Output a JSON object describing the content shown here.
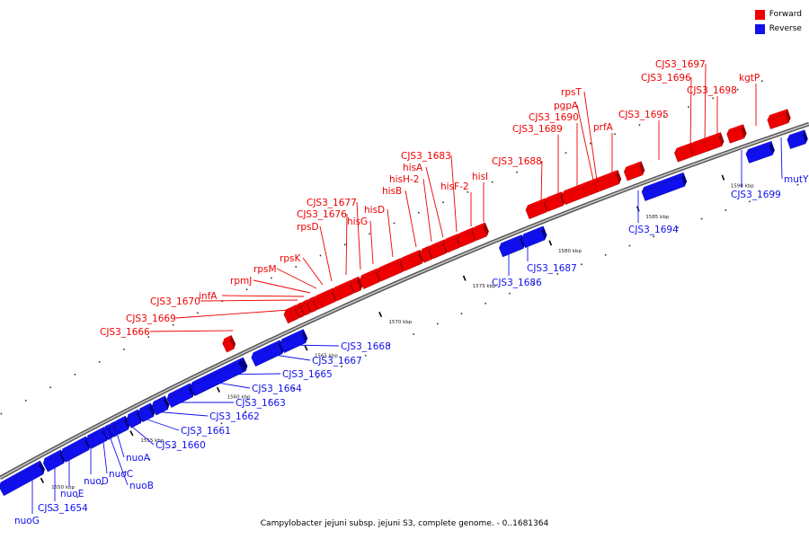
{
  "colors": {
    "forward": "#ee0000",
    "forward_dark": "#a00000",
    "reverse": "#1010ee",
    "reverse_dark": "#00008a"
  },
  "legend": [
    {
      "label": "Forward",
      "color": "#ee0000"
    },
    {
      "label": "Reverse",
      "color": "#1010ee"
    }
  ],
  "caption": "Campylobacter jejuni subsp. jejuni S3, complete genome. - 0..1681364",
  "ticks": [
    {
      "label": "1550 kbp"
    },
    {
      "label": "1555 kbp"
    },
    {
      "label": "1560 kbp"
    },
    {
      "label": "1565 kbp"
    },
    {
      "label": "1570 kbp"
    },
    {
      "label": "1575 kbp"
    },
    {
      "label": "1580 kbp"
    },
    {
      "label": "1585 kbp"
    },
    {
      "label": "1590 kbp"
    }
  ],
  "genes": [
    {
      "name": "nuoG",
      "strand": "reverse"
    },
    {
      "name": "CJS3_1654",
      "strand": "reverse"
    },
    {
      "name": "nuoE",
      "strand": "reverse"
    },
    {
      "name": "nuoD",
      "strand": "reverse"
    },
    {
      "name": "nuoC",
      "strand": "reverse"
    },
    {
      "name": "nuoB",
      "strand": "reverse"
    },
    {
      "name": "nuoA",
      "strand": "reverse"
    },
    {
      "name": "CJS3_1660",
      "strand": "reverse"
    },
    {
      "name": "CJS3_1661",
      "strand": "reverse"
    },
    {
      "name": "CJS3_1662",
      "strand": "reverse"
    },
    {
      "name": "CJS3_1663",
      "strand": "reverse"
    },
    {
      "name": "CJS3_1664",
      "strand": "reverse"
    },
    {
      "name": "CJS3_1665",
      "strand": "reverse"
    },
    {
      "name": "CJS3_1667",
      "strand": "reverse"
    },
    {
      "name": "CJS3_1668",
      "strand": "reverse"
    },
    {
      "name": "CJS3_1666",
      "strand": "forward"
    },
    {
      "name": "CJS3_1669",
      "strand": "forward"
    },
    {
      "name": "CJS3_1670",
      "strand": "forward"
    },
    {
      "name": "infA",
      "strand": "forward"
    },
    {
      "name": "rpmJ",
      "strand": "forward"
    },
    {
      "name": "rpsM",
      "strand": "forward"
    },
    {
      "name": "rpsK",
      "strand": "forward"
    },
    {
      "name": "rpsD",
      "strand": "forward"
    },
    {
      "name": "CJS3_1676",
      "strand": "forward"
    },
    {
      "name": "CJS3_1677",
      "strand": "forward"
    },
    {
      "name": "hisG",
      "strand": "forward"
    },
    {
      "name": "hisD",
      "strand": "forward"
    },
    {
      "name": "hisB",
      "strand": "forward"
    },
    {
      "name": "hisH-2",
      "strand": "forward"
    },
    {
      "name": "hisA",
      "strand": "forward"
    },
    {
      "name": "CJS3_1683",
      "strand": "forward"
    },
    {
      "name": "hisF-2",
      "strand": "forward"
    },
    {
      "name": "hisI",
      "strand": "forward"
    },
    {
      "name": "CJS3_1686",
      "strand": "reverse"
    },
    {
      "name": "CJS3_1687",
      "strand": "reverse"
    },
    {
      "name": "CJS3_1688",
      "strand": "forward"
    },
    {
      "name": "CJS3_1689",
      "strand": "forward"
    },
    {
      "name": "CJS3_1690",
      "strand": "forward"
    },
    {
      "name": "pgpA",
      "strand": "forward"
    },
    {
      "name": "rpsT",
      "strand": "forward"
    },
    {
      "name": "prfA",
      "strand": "forward"
    },
    {
      "name": "CJS3_1694",
      "strand": "reverse"
    },
    {
      "name": "CJS3_1695",
      "strand": "forward"
    },
    {
      "name": "CJS3_1696",
      "strand": "forward"
    },
    {
      "name": "CJS3_1697",
      "strand": "forward"
    },
    {
      "name": "CJS3_1698",
      "strand": "forward"
    },
    {
      "name": "CJS3_1699",
      "strand": "reverse"
    },
    {
      "name": "kgtP",
      "strand": "forward"
    },
    {
      "name": "mutY",
      "strand": "reverse"
    }
  ]
}
